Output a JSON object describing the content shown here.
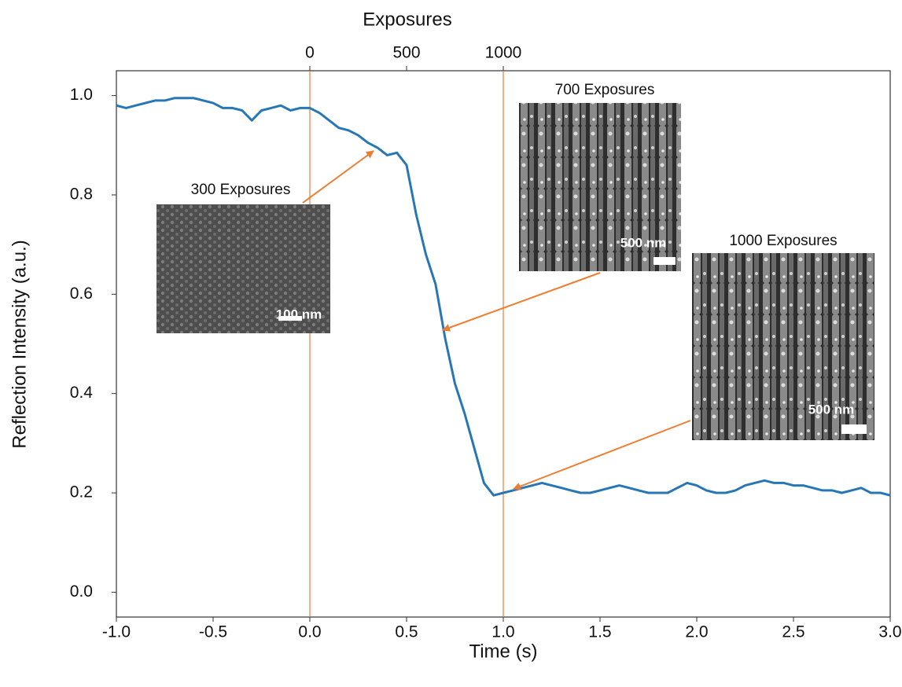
{
  "chart_data": {
    "type": "line",
    "xlabel": "Time (s)",
    "ylabel": "Reflection Intensity (a.u.)",
    "x2label": "Exposures",
    "xlim": [
      -1,
      3
    ],
    "xticks": [
      {
        "value": -1,
        "label": "-1.0"
      },
      -0.5,
      {
        "value": 0,
        "label": "0.0"
      },
      0.5,
      {
        "value": 1,
        "label": "1.0"
      },
      1.5,
      {
        "value": 2,
        "label": "2.0"
      },
      2.5,
      {
        "value": 3,
        "label": "3.0"
      }
    ],
    "ylim": [
      -0.05,
      1.05
    ],
    "yticks": [
      {
        "value": 0,
        "label": "0.0"
      },
      0.2,
      0.4,
      0.6,
      0.8,
      {
        "value": 1,
        "label": "1.0"
      }
    ],
    "x2lim": [
      -1000,
      3000
    ],
    "x2ticks": [
      0,
      500,
      1000
    ],
    "vlines": [
      0,
      1000
    ],
    "vline_color": "#ed7d31",
    "color": "#2777b6",
    "x": [
      -1,
      -0.95,
      -0.9,
      -0.85,
      -0.8,
      -0.75,
      -0.7,
      -0.65,
      -0.6,
      -0.55,
      -0.5,
      -0.45,
      -0.4,
      -0.35,
      -0.3,
      -0.25,
      -0.2,
      -0.15,
      -0.1,
      -0.05,
      0,
      0.05,
      0.1,
      0.15,
      0.2,
      0.25,
      0.3,
      0.35,
      0.4,
      0.45,
      0.5,
      0.55,
      0.6,
      0.65,
      0.7,
      0.75,
      0.8,
      0.85,
      0.9,
      0.95,
      1,
      1.05,
      1.1,
      1.15,
      1.2,
      1.25,
      1.3,
      1.35,
      1.4,
      1.45,
      1.5,
      1.55,
      1.6,
      1.65,
      1.7,
      1.75,
      1.8,
      1.85,
      1.9,
      1.95,
      2,
      2.05,
      2.1,
      2.15,
      2.2,
      2.25,
      2.3,
      2.35,
      2.4,
      2.45,
      2.5,
      2.55,
      2.6,
      2.65,
      2.7,
      2.75,
      2.8,
      2.85,
      2.9,
      2.95,
      3
    ],
    "values": [
      0.98,
      0.975,
      0.98,
      0.985,
      0.99,
      0.99,
      0.995,
      0.995,
      0.995,
      0.99,
      0.985,
      0.975,
      0.975,
      0.97,
      0.95,
      0.97,
      0.975,
      0.98,
      0.97,
      0.975,
      0.975,
      0.965,
      0.95,
      0.935,
      0.93,
      0.92,
      0.905,
      0.895,
      0.88,
      0.885,
      0.86,
      0.76,
      0.68,
      0.62,
      0.51,
      0.42,
      0.36,
      0.29,
      0.22,
      0.195,
      0.2,
      0.205,
      0.21,
      0.215,
      0.22,
      0.215,
      0.21,
      0.205,
      0.2,
      0.2,
      0.205,
      0.21,
      0.215,
      0.21,
      0.205,
      0.2,
      0.2,
      0.2,
      0.21,
      0.22,
      0.215,
      0.205,
      0.2,
      0.2,
      0.205,
      0.215,
      0.22,
      0.225,
      0.22,
      0.22,
      0.215,
      0.215,
      0.21,
      0.205,
      0.205,
      0.2,
      0.205,
      0.21,
      0.2,
      0.2,
      0.195
    ],
    "annotations": [
      {
        "label": "300 Exposures",
        "scale_bar": "100 nm"
      },
      {
        "label": "700 Exposures",
        "scale_bar": "500 nm"
      },
      {
        "label": "1000 Exposures",
        "scale_bar": "500 nm"
      }
    ]
  }
}
